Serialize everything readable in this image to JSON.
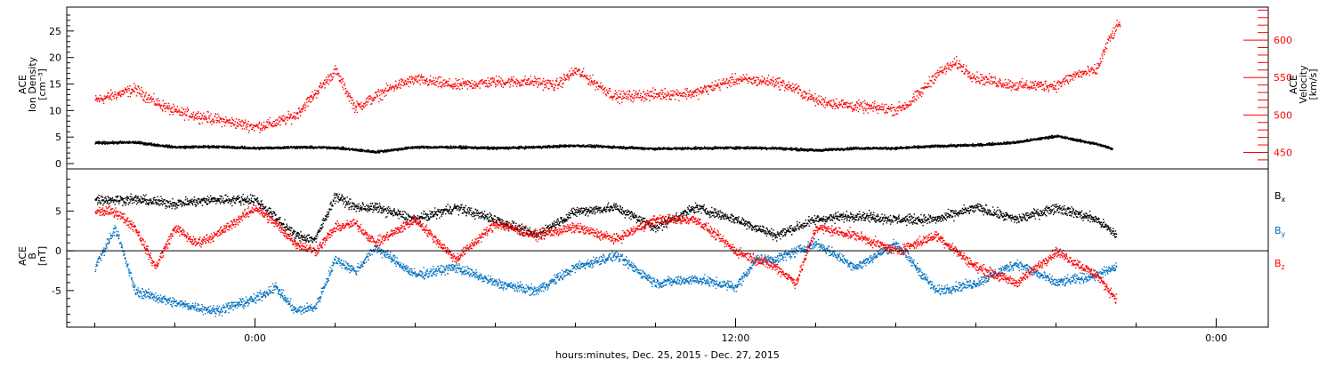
{
  "chart_data": [
    {
      "type": "scatter",
      "panel": "plasma",
      "ylabel_left": [
        "ACE",
        "Ion Density",
        "[cm⁻³]"
      ],
      "ylabel_right": [
        "ACE",
        "Velocity",
        "[km/s]"
      ],
      "ylim_left": [
        -1,
        29.5
      ],
      "ylim_right": [
        428,
        644
      ],
      "yticks_left": [
        "0",
        "5",
        "10",
        "15",
        "20",
        "25"
      ],
      "ytick_values_left": [
        0,
        5,
        10,
        15,
        20,
        25
      ],
      "yticks_right": [
        "450",
        "500",
        "550",
        "600"
      ],
      "ytick_values_right": [
        450,
        500,
        550,
        600
      ],
      "series": [
        {
          "name": "Ion Density",
          "axis": "left",
          "color": "#000000",
          "x": [
            -4,
            -3,
            -2,
            -1,
            0,
            1,
            2,
            3,
            4,
            5,
            6,
            7,
            8,
            9,
            10,
            11,
            12,
            13,
            14,
            15,
            16,
            17,
            18,
            19,
            20,
            21,
            21.4
          ],
          "y": [
            4,
            4.1,
            3.2,
            3.3,
            3.0,
            3.2,
            3.1,
            2.3,
            3.2,
            3.2,
            3.0,
            3.2,
            3.5,
            3.2,
            2.9,
            3.0,
            3.1,
            3.0,
            2.6,
            3.0,
            3.0,
            3.4,
            3.6,
            4.1,
            5.3,
            3.8,
            2.9
          ]
        },
        {
          "name": "Velocity",
          "axis": "right",
          "color": "#ff0000",
          "x": [
            -4,
            -3,
            -2.5,
            -2,
            -1.5,
            -1,
            -0.5,
            0,
            0.5,
            1,
            1.5,
            2,
            2.5,
            3,
            3.5,
            4,
            5,
            6,
            7,
            7.5,
            8,
            9,
            10,
            11,
            11.5,
            12,
            13,
            13.5,
            14,
            15,
            16,
            16.3,
            16.6,
            17,
            17.5,
            18,
            18.5,
            19,
            20,
            20.5,
            21,
            21.3,
            21.6
          ],
          "y": [
            520,
            535,
            518,
            505,
            500,
            495,
            490,
            485,
            490,
            500,
            530,
            560,
            510,
            525,
            540,
            548,
            540,
            545,
            545,
            540,
            560,
            525,
            528,
            530,
            540,
            548,
            545,
            535,
            520,
            512,
            508,
            515,
            530,
            555,
            570,
            550,
            545,
            540,
            540,
            555,
            560,
            600,
            625
          ]
        }
      ]
    },
    {
      "type": "scatter",
      "panel": "magnetic-field",
      "ylabel_left": [
        "ACE",
        "B",
        "[nT]"
      ],
      "ylim": [
        -9.6,
        10.3
      ],
      "yticks": [
        "-5",
        "0",
        "5"
      ],
      "ytick_values": [
        -5,
        0,
        5
      ],
      "zero_line": true,
      "xlabel": "hours:minutes, Dec. 25, 2015 - Dec. 27, 2015",
      "xlim": [
        -4.7,
        25.3
      ],
      "xticks": [
        "0:00",
        "12:00",
        "0:00"
      ],
      "xtick_values": [
        0,
        12,
        24
      ],
      "x_minor_step": 2,
      "series": [
        {
          "name": "Bx",
          "color": "#000000",
          "x": [
            -4,
            -3,
            -2,
            -1,
            0,
            1,
            1.5,
            2,
            2.5,
            3,
            4,
            5,
            6,
            7,
            8,
            9,
            10,
            11,
            12,
            13,
            14,
            15,
            16,
            17,
            18,
            19,
            20,
            21,
            21.5
          ],
          "y": [
            6.5,
            6.5,
            6,
            6.5,
            6.5,
            2,
            1.5,
            7,
            5.5,
            5.5,
            4,
            5.5,
            4,
            2,
            5,
            5.5,
            3,
            5.5,
            4,
            2,
            4,
            4.5,
            4,
            4,
            5.5,
            4,
            5.5,
            4,
            2
          ]
        },
        {
          "name": "By",
          "color": "#0070c0",
          "x": [
            -4,
            -3.5,
            -3,
            -2,
            -1,
            0,
            0.5,
            1,
            1.5,
            2,
            2.5,
            3,
            4,
            5,
            6,
            7,
            7.5,
            8,
            9,
            10,
            11,
            12,
            12.5,
            13,
            14,
            15,
            16,
            17,
            18,
            19,
            20,
            21,
            21.5
          ],
          "y": [
            -2,
            3,
            -5,
            -6.5,
            -7.5,
            -6,
            -4.5,
            -7.5,
            -7,
            -1,
            -2.5,
            0.5,
            -3,
            -2,
            -4,
            -5,
            -3.5,
            -2,
            -0.5,
            -4,
            -3.5,
            -4.5,
            -1,
            -1,
            1,
            -2,
            1,
            -5,
            -4,
            -1.5,
            -4,
            -3,
            -2
          ]
        },
        {
          "name": "Bz",
          "color": "#ff0000",
          "x": [
            -4,
            -3.5,
            -3,
            -2.5,
            -2,
            -1.5,
            -1,
            0,
            0.5,
            1,
            1.5,
            2,
            2.5,
            3,
            4,
            5,
            6,
            7,
            8,
            9,
            10,
            11,
            12,
            13,
            13.5,
            14,
            15,
            16,
            17,
            18,
            19,
            20,
            21,
            21.5
          ],
          "y": [
            5,
            5,
            3,
            -2,
            3,
            1,
            2,
            5.5,
            3.5,
            1,
            0,
            3,
            3.5,
            1,
            4,
            -1,
            3.5,
            2,
            3,
            1.5,
            4,
            4,
            0,
            -2,
            -4,
            3,
            2,
            0,
            2,
            -2,
            -4,
            0,
            -3,
            -6
          ]
        }
      ],
      "legend": {
        "placement": "right",
        "entries": [
          "Bx",
          "By",
          "Bz"
        ]
      }
    }
  ]
}
